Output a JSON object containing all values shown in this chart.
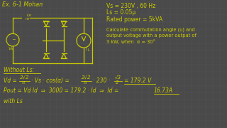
{
  "background_color": "#4a4a4a",
  "grid_color": "#555555",
  "text_color": "#cccc00",
  "title": "Ex. 6-1 Mohan",
  "line1": "Vs = 230V , 60 Hz",
  "line2": "Ls = 0.05μ",
  "line3": "Rated power = 5kVA",
  "prob1": "Calculate commutation angle (u) and",
  "prob2": "output voltage with a power output of",
  "prob3": "3 kW, when  α = 30°",
  "sec1": "Without Ls:",
  "eq1a": "Vd = 2√2 · Vs  cos(α) =  2√2  · 230 · √3  = 179.2 V",
  "eq1b": "       π                        π          2",
  "eq2": "Pout = Vd Id  ⇒  3000 = 179.2 · Id  ⇒  Id = 16.73A",
  "sec2": "with Ls"
}
